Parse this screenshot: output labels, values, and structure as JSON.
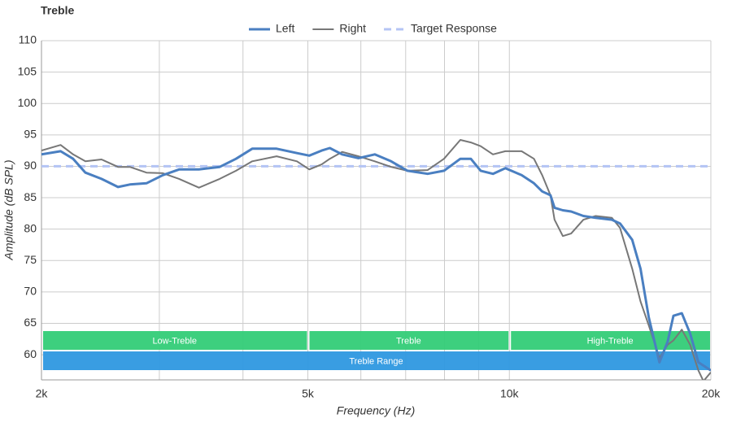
{
  "chart_data": {
    "type": "line",
    "title": "Treble",
    "x_label": "Frequency (Hz)",
    "y_label": "Amplitude (dB SPL)",
    "xscale": "log",
    "xlim": [
      2000,
      20000
    ],
    "xticks": [
      {
        "value": 2000,
        "label": "2k"
      },
      {
        "value": 5000,
        "label": "5k"
      },
      {
        "value": 10000,
        "label": "10k"
      },
      {
        "value": 20000,
        "label": "20k"
      }
    ],
    "xgrid_minor": [
      3000,
      4000,
      6000,
      7000,
      8000,
      9000
    ],
    "ylim": [
      56,
      110
    ],
    "yticks": [
      60,
      65,
      70,
      75,
      80,
      85,
      90,
      95,
      100,
      105,
      110
    ],
    "grid": true,
    "legend": "top",
    "series": [
      {
        "name": "Left",
        "color": "#4a7fc1",
        "style": "solid",
        "x": [
          2000,
          2136,
          2230,
          2326,
          2459,
          2602,
          2711,
          2870,
          3036,
          3211,
          3438,
          3692,
          3905,
          4129,
          4491,
          4816,
          5025,
          5244,
          5392,
          5626,
          5950,
          6295,
          6658,
          7042,
          7551,
          7986,
          8448,
          8760,
          9062,
          9452,
          9862,
          10430,
          10883,
          11196,
          11520,
          11682,
          12020,
          12367,
          12900,
          13456,
          14228,
          14632,
          15259,
          15700,
          16150,
          16758,
          17238,
          17587,
          18100,
          18623,
          19160,
          20000
        ],
        "values": [
          91.9,
          92.4,
          91.2,
          89,
          88,
          86.7,
          87.1,
          87.3,
          88.6,
          89.5,
          89.5,
          89.9,
          91.2,
          92.8,
          92.8,
          92.1,
          91.7,
          92.5,
          92.9,
          91.9,
          91.3,
          91.9,
          90.8,
          89.3,
          88.8,
          89.3,
          91.2,
          91.2,
          89.3,
          88.8,
          89.7,
          88.6,
          87.3,
          86,
          85.4,
          83.4,
          83,
          82.8,
          82.1,
          81.8,
          81.5,
          80.9,
          78.3,
          73.7,
          66,
          58.8,
          62.1,
          66.2,
          66.6,
          63.4,
          58.8,
          57.5
        ]
      },
      {
        "name": "Right",
        "color": "#777777",
        "style": "thin",
        "x": [
          2000,
          2136,
          2230,
          2326,
          2459,
          2602,
          2711,
          2870,
          3036,
          3211,
          3438,
          3692,
          3905,
          4129,
          4491,
          4816,
          5025,
          5244,
          5392,
          5626,
          5950,
          6295,
          6658,
          7042,
          7551,
          7986,
          8448,
          8760,
          9062,
          9452,
          9862,
          10430,
          10883,
          11196,
          11520,
          11682,
          12020,
          12367,
          12900,
          13456,
          14228,
          14632,
          15259,
          15700,
          16150,
          16758,
          17238,
          17587,
          18100,
          18623,
          19160,
          19497,
          20000
        ],
        "values": [
          92.5,
          93.4,
          91.9,
          90.8,
          91.1,
          89.9,
          89.9,
          89,
          88.9,
          88,
          86.6,
          88,
          89.3,
          90.8,
          91.6,
          90.8,
          89.5,
          90.3,
          91.2,
          92.3,
          91.6,
          90.8,
          89.9,
          89.3,
          89.4,
          91.2,
          94.2,
          93.8,
          93.2,
          91.9,
          92.4,
          92.4,
          91.2,
          88.6,
          85.4,
          81.5,
          78.9,
          79.3,
          81.5,
          82.1,
          81.8,
          80.2,
          73.7,
          68.5,
          64.7,
          59.5,
          61.6,
          62.3,
          64,
          61.6,
          57.5,
          55.8,
          57.2
        ]
      },
      {
        "name": "Target Response",
        "color": "#b4c4f4",
        "style": "dashed",
        "x": [
          2000,
          20000
        ],
        "values": [
          90,
          90
        ]
      }
    ],
    "bands": [
      {
        "label": "Low-Treble",
        "range": [
          2000,
          5000
        ],
        "color": "#33cc77"
      },
      {
        "label": "Treble",
        "range": [
          5000,
          10000
        ],
        "color": "#33cc77"
      },
      {
        "label": "High-Treble",
        "range": [
          10000,
          20000
        ],
        "color": "#33cc77"
      }
    ],
    "range_band": {
      "label": "Treble Range",
      "range": [
        2000,
        20000
      ],
      "color": "#2e98e0"
    }
  }
}
